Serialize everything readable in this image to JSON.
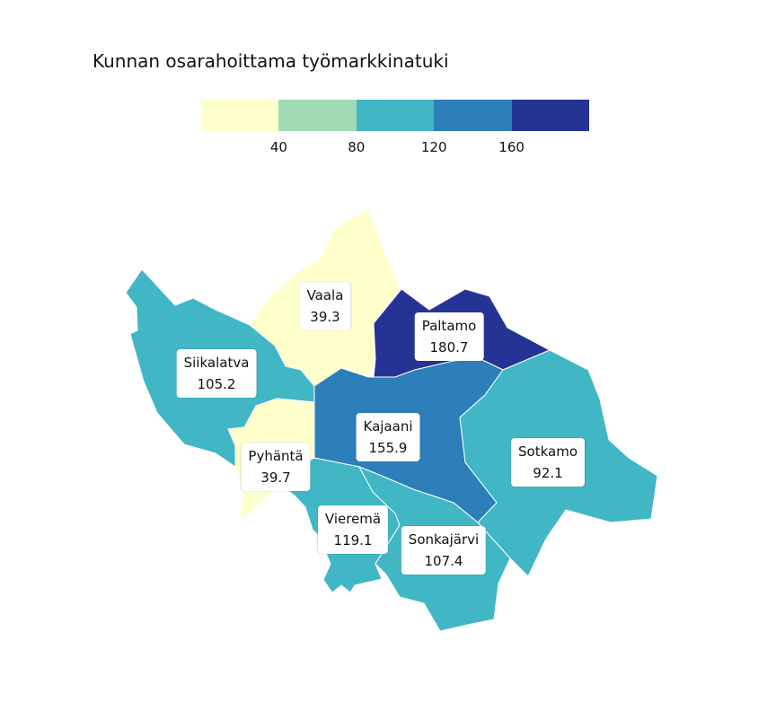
{
  "title": "Kunnan osarahoittama työmarkkinatuki",
  "legend": {
    "colors": [
      "#ffffcc",
      "#a1dab4",
      "#41b6c4",
      "#2c7fb8",
      "#253494"
    ],
    "ticks": [
      "40",
      "80",
      "120",
      "160"
    ]
  },
  "regions": [
    {
      "name": "Vaala",
      "value": "39.3",
      "color": "#ffffcc"
    },
    {
      "name": "Paltamo",
      "value": "180.7",
      "color": "#253494"
    },
    {
      "name": "Siikalatva",
      "value": "105.2",
      "color": "#41b6c4"
    },
    {
      "name": "Kajaani",
      "value": "155.9",
      "color": "#2c7fb8"
    },
    {
      "name": "Sotkamo",
      "value": "92.1",
      "color": "#41b6c4"
    },
    {
      "name": "Pyhäntä",
      "value": "39.7",
      "color": "#ffffcc"
    },
    {
      "name": "Vieremä",
      "value": "119.1",
      "color": "#41b6c4"
    },
    {
      "name": "Sonkajärvi",
      "value": "107.4",
      "color": "#41b6c4"
    }
  ]
}
